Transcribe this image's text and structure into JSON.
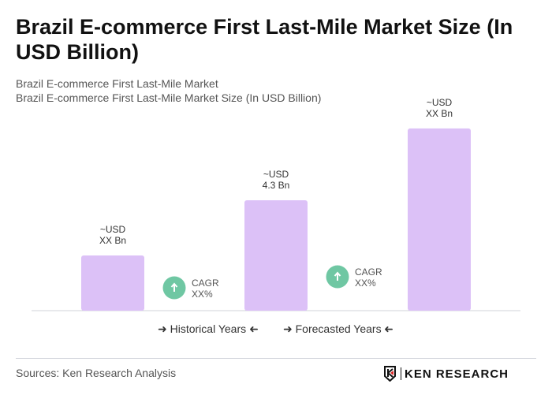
{
  "title": "Brazil E-commerce First Last-Mile Market Size (In USD Billion)",
  "subtitle1": "Brazil E-commerce First Last-Mile Market",
  "subtitle2": "Brazil E-commerce First Last-Mile Market Size (In USD Billion)",
  "chart_data": {
    "type": "bar",
    "bars": [
      {
        "label_line1": "~USD",
        "label_line2": "XX Bn",
        "value": 2.15
      },
      {
        "label_line1": "~USD",
        "label_line2": "4.3 Bn",
        "value": 4.3
      },
      {
        "label_line1": "~USD",
        "label_line2": "XX Bn",
        "value": 7.1
      }
    ],
    "cagr": [
      {
        "line1": "CAGR",
        "line2": "XX%"
      },
      {
        "line1": "CAGR",
        "line2": "XX%"
      }
    ],
    "bar_color": "#dcc1f7",
    "cagr_color": "#6fc7a3",
    "grid": false
  },
  "legend": {
    "historical": "Historical Years",
    "forecasted": "Forecasted Years"
  },
  "sources": "Sources: Ken Research Analysis",
  "logo_text": "KEN RESEARCH"
}
